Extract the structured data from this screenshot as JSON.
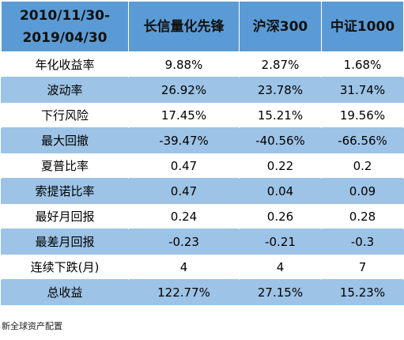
{
  "table": {
    "header": {
      "period_start": "2010/11/30-",
      "period_end": "2019/04/30",
      "columns": [
        "长信量化先锋",
        "沪深300",
        "中证1000"
      ]
    },
    "rows": [
      {
        "metric": "年化收益率",
        "values": [
          "9.88%",
          "2.87%",
          "1.68%"
        ]
      },
      {
        "metric": "波动率",
        "values": [
          "26.92%",
          "23.78%",
          "31.74%"
        ]
      },
      {
        "metric": "下行风险",
        "values": [
          "17.45%",
          "15.21%",
          "19.56%"
        ]
      },
      {
        "metric": "最大回撤",
        "values": [
          "-39.47%",
          "-40.56%",
          "-66.56%"
        ]
      },
      {
        "metric": "夏普比率",
        "values": [
          "0.47",
          "0.22",
          "0.2"
        ]
      },
      {
        "metric": "索提诺比率",
        "values": [
          "0.47",
          "0.04",
          "0.09"
        ]
      },
      {
        "metric": "最好月回报",
        "values": [
          "0.24",
          "0.26",
          "0.28"
        ]
      },
      {
        "metric": "最差月回报",
        "values": [
          "-0.23",
          "-0.21",
          "-0.3"
        ]
      },
      {
        "metric": "连续下跌(月)",
        "values": [
          "4",
          "4",
          "7"
        ]
      },
      {
        "metric": "总收益",
        "values": [
          "122.77%",
          "27.15%",
          "15.23%"
        ]
      }
    ]
  },
  "footer": {
    "source": "新全球资产配置"
  },
  "colors": {
    "header_bg": "#5b9bd5",
    "stripe_bg": "#9dc3e6",
    "row_bg": "#ffffff"
  }
}
